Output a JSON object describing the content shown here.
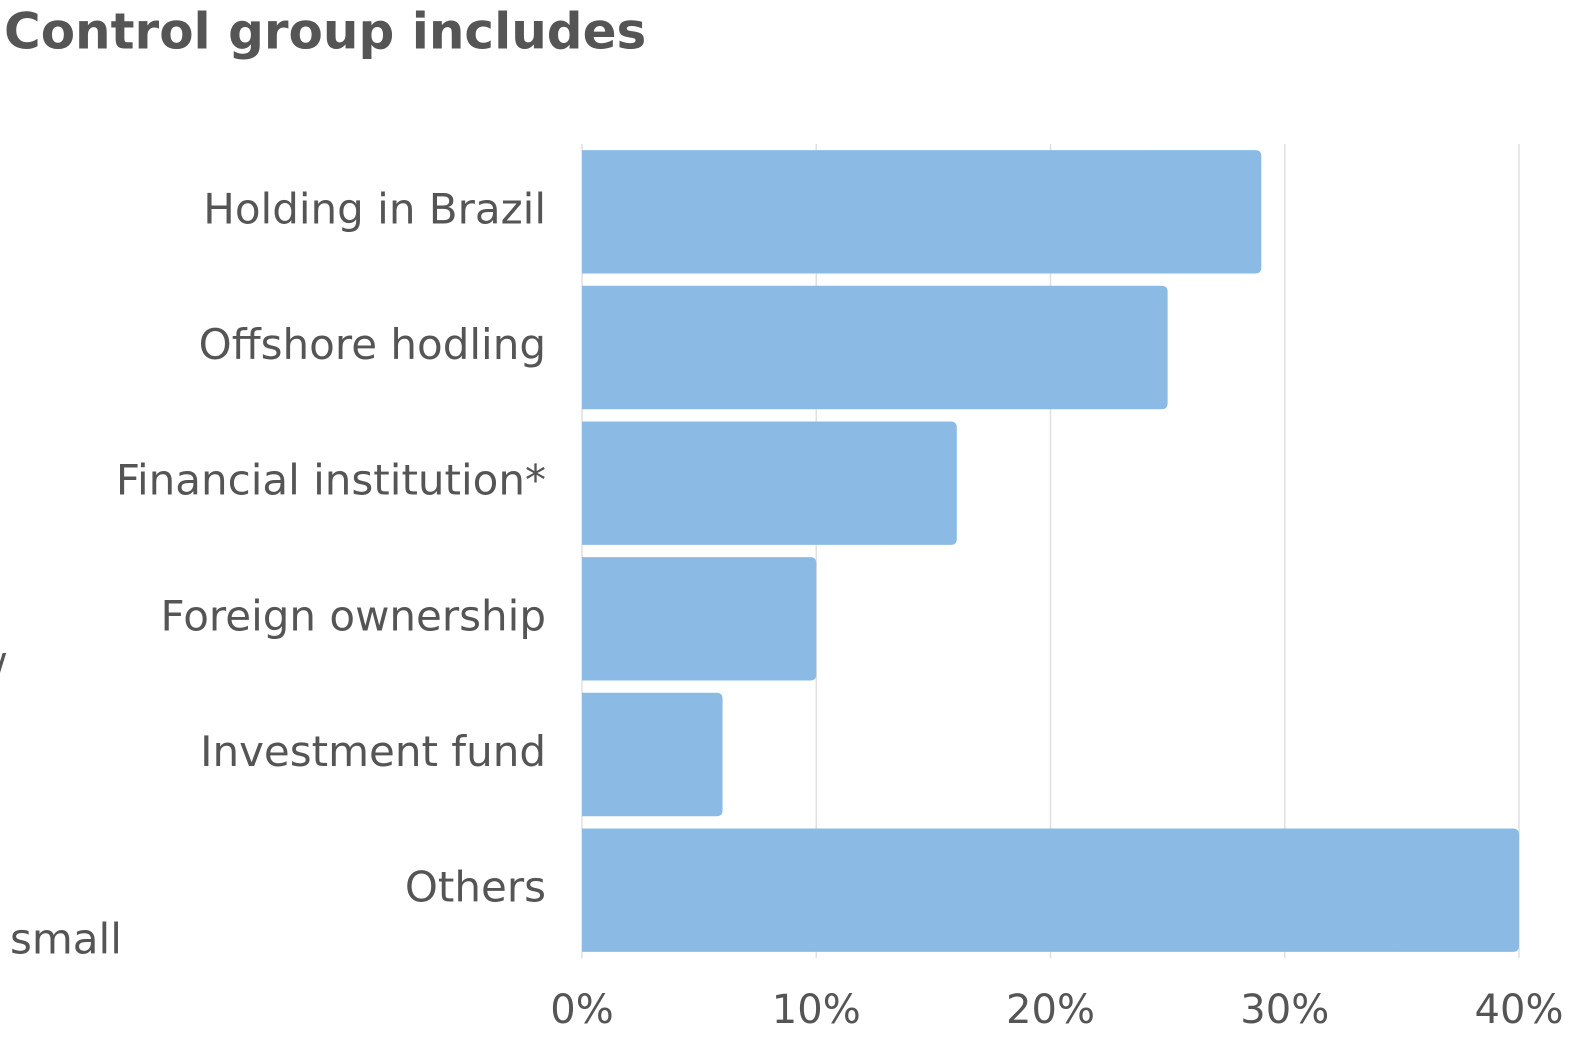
{
  "chart_data": {
    "type": "bar",
    "orientation": "horizontal",
    "title": "Control group includes",
    "categories": [
      "Holding in Brazil",
      "Offshore hodling",
      "Financial institution*",
      "Foreign ownership",
      "Investment fund",
      "Others"
    ],
    "values": [
      29,
      25,
      16,
      10,
      6,
      40
    ],
    "color": "#8bbbe4",
    "xlim": [
      0,
      40
    ],
    "xticks": [
      {
        "value": 0,
        "label": "0%"
      },
      {
        "value": 10,
        "label": "10%"
      },
      {
        "value": 20,
        "label": "20%"
      },
      {
        "value": 30,
        "label": "30%"
      },
      {
        "value": 40,
        "label": "40%"
      }
    ],
    "grid": true,
    "annotations": [
      "/",
      "small"
    ]
  }
}
